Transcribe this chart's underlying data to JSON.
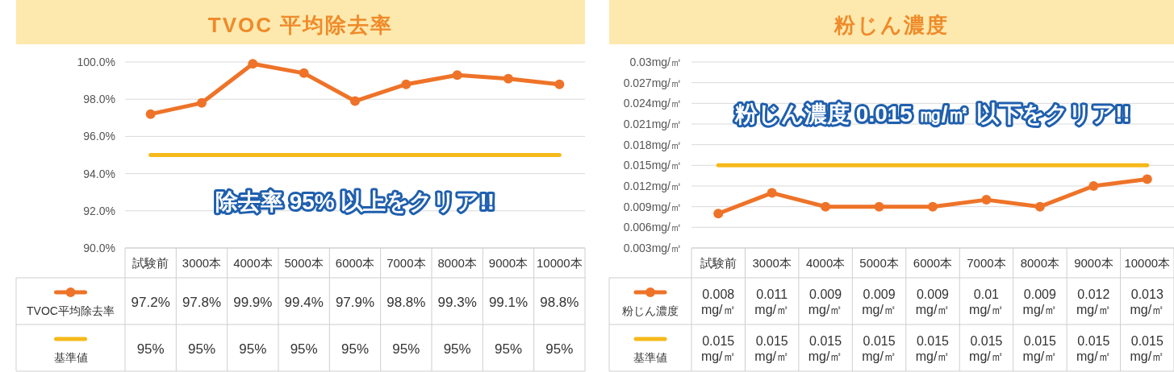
{
  "chart_data": [
    {
      "type": "line",
      "title": "TVOC 平均除去率",
      "categories": [
        "試験前",
        "3000本",
        "4000本",
        "5000本",
        "6000本",
        "7000本",
        "8000本",
        "9000本",
        "10000本"
      ],
      "series": [
        {
          "name": "TVOC平均除去率",
          "color": "#ee7328",
          "marker": "circle",
          "values": [
            97.2,
            97.8,
            99.9,
            99.4,
            97.9,
            98.8,
            99.3,
            99.1,
            98.8
          ],
          "value_labels": [
            "97.2%",
            "97.8%",
            "99.9%",
            "99.4%",
            "97.9%",
            "98.8%",
            "99.3%",
            "99.1%",
            "98.8%"
          ]
        },
        {
          "name": "基準値",
          "color": "#f5b91a",
          "marker": "none",
          "values": [
            95,
            95,
            95,
            95,
            95,
            95,
            95,
            95,
            95
          ],
          "value_labels": [
            "95%",
            "95%",
            "95%",
            "95%",
            "95%",
            "95%",
            "95%",
            "95%",
            "95%"
          ]
        }
      ],
      "ylim": [
        90,
        100
      ],
      "yticks": [
        {
          "value": 90,
          "label": "90.0%"
        },
        {
          "value": 92,
          "label": "92.0%"
        },
        {
          "value": 94,
          "label": "94.0%"
        },
        {
          "value": 96,
          "label": "96.0%"
        },
        {
          "value": 98,
          "label": "98.0%"
        },
        {
          "value": 100,
          "label": "100.0%"
        }
      ],
      "grid": "y",
      "legend": "bottom",
      "annotations": [
        "除去率 95% 以上をクリア!!"
      ]
    },
    {
      "type": "line",
      "title": "粉じん濃度",
      "categories": [
        "試験前",
        "3000本",
        "4000本",
        "5000本",
        "6000本",
        "7000本",
        "8000本",
        "9000本",
        "10000本"
      ],
      "series": [
        {
          "name": "粉じん濃度",
          "color": "#ee7328",
          "marker": "circle",
          "values": [
            0.008,
            0.011,
            0.009,
            0.009,
            0.009,
            0.01,
            0.009,
            0.012,
            0.013
          ],
          "value_labels": [
            "0.008 mg/㎡",
            "0.011 mg/㎡",
            "0.009 mg/㎡",
            "0.009 mg/㎡",
            "0.009 mg/㎡",
            "0.01 mg/㎡",
            "0.009 mg/㎡",
            "0.012 mg/㎡",
            "0.013 mg/㎡"
          ]
        },
        {
          "name": "基準値",
          "color": "#f5b91a",
          "marker": "none",
          "values": [
            0.015,
            0.015,
            0.015,
            0.015,
            0.015,
            0.015,
            0.015,
            0.015,
            0.015
          ],
          "value_labels": [
            "0.015 mg/㎡",
            "0.015 mg/㎡",
            "0.015 mg/㎡",
            "0.015 mg/㎡",
            "0.015 mg/㎡",
            "0.015 mg/㎡",
            "0.015 mg/㎡",
            "0.015 mg/㎡",
            "0.015 mg/㎡"
          ]
        }
      ],
      "ylim": [
        0.003,
        0.03
      ],
      "yticks": [
        {
          "value": 0.003,
          "label": "0.003mg/㎡"
        },
        {
          "value": 0.006,
          "label": "0.006mg/㎡"
        },
        {
          "value": 0.009,
          "label": "0.009mg/㎡"
        },
        {
          "value": 0.012,
          "label": "0.012mg/㎡"
        },
        {
          "value": 0.015,
          "label": "0.015mg/㎡"
        },
        {
          "value": 0.018,
          "label": "0.018mg/㎡"
        },
        {
          "value": 0.021,
          "label": "0.021mg/㎡"
        },
        {
          "value": 0.024,
          "label": "0.024mg/㎡"
        },
        {
          "value": 0.027,
          "label": "0.027mg/㎡"
        },
        {
          "value": 0.03,
          "label": "0.03mg/㎡"
        }
      ],
      "grid": "y",
      "legend": "bottom",
      "annotations": [
        "粉じん濃度 0.015 ㎎/㎡ 以下をクリア!!"
      ]
    }
  ]
}
